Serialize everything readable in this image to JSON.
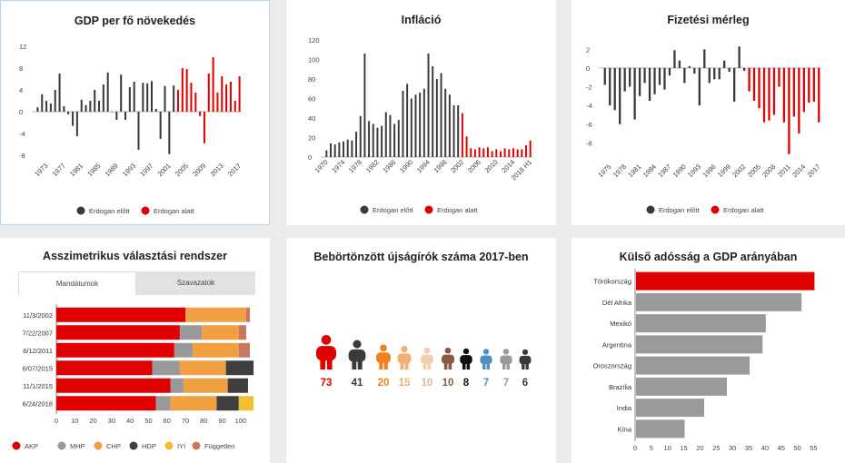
{
  "chart_data": [
    {
      "id": "gdp",
      "type": "bar",
      "title": "GDP per fő növekedés",
      "x": [
        1971,
        1972,
        1973,
        1974,
        1975,
        1976,
        1977,
        1978,
        1979,
        1980,
        1981,
        1982,
        1983,
        1984,
        1985,
        1986,
        1987,
        1988,
        1989,
        1990,
        1991,
        1992,
        1993,
        1994,
        1995,
        1996,
        1997,
        1998,
        1999,
        2000,
        2001,
        2002,
        2003,
        2004,
        2005,
        2006,
        2007,
        2008,
        2009,
        2010,
        2011,
        2012,
        2013,
        2014,
        2015,
        2016,
        2017
      ],
      "values": [
        0.8,
        3.2,
        2.0,
        1.5,
        4.0,
        7.0,
        1.0,
        -0.5,
        -2.6,
        -4.5,
        2.2,
        1.2,
        2.0,
        4.0,
        2.0,
        5.0,
        7.2,
        0.0,
        -1.5,
        6.8,
        -1.5,
        4.5,
        5.5,
        -7.0,
        5.3,
        5.2,
        5.6,
        0.5,
        -5.0,
        4.7,
        -7.8,
        4.8,
        4.0,
        8.0,
        7.8,
        5.3,
        3.5,
        -0.8,
        -5.8,
        7.0,
        10.0,
        3.5,
        6.5,
        5.0,
        5.5,
        2.0,
        6.5
      ],
      "series": [
        {
          "name": "Erdogan előtt",
          "color": "#3a3a3a"
        },
        {
          "name": "Erdogan alatt",
          "color": "#e00000"
        }
      ],
      "split": 2003,
      "ylim": [
        -9,
        13
      ],
      "yticks": [
        12,
        8,
        4,
        0,
        -4,
        -8
      ],
      "xticks": [
        1973,
        1977,
        1981,
        1985,
        1989,
        1993,
        1997,
        2001,
        2005,
        2009,
        2013,
        2017
      ],
      "legend": [
        "Erdogan előtt",
        "Erdogan alatt"
      ]
    },
    {
      "id": "inflation",
      "type": "bar",
      "title": "Infláció",
      "x": [
        "1970",
        "1971",
        "1972",
        "1973",
        "1974",
        "1975",
        "1976",
        "1977",
        "1978",
        "1979",
        "1980",
        "1981",
        "1982",
        "1983",
        "1984",
        "1985",
        "1986",
        "1987",
        "1988",
        "1989",
        "1990",
        "1991",
        "1992",
        "1993",
        "1994",
        "1995",
        "1996",
        "1997",
        "1998",
        "1999",
        "2000",
        "2001",
        "2002",
        "2003",
        "2004",
        "2005",
        "2006",
        "2007",
        "2008",
        "2009",
        "2010",
        "2011",
        "2012",
        "2013",
        "2014",
        "2015",
        "2016",
        "2017",
        "2018 H1"
      ],
      "values": [
        7,
        14,
        13,
        15,
        16,
        18,
        17,
        26,
        42,
        106,
        37,
        34,
        30,
        32,
        46,
        43,
        34,
        38,
        68,
        75,
        60,
        64,
        66,
        70,
        106,
        93,
        80,
        86,
        70,
        64,
        53,
        53,
        45,
        21,
        9,
        8,
        10,
        9,
        10,
        6,
        8,
        6,
        9,
        8,
        9,
        8,
        8,
        12,
        17
      ],
      "series": [
        {
          "name": "Erdogan előtt",
          "color": "#3a3a3a"
        },
        {
          "name": "Erdogan alatt",
          "color": "#e00000"
        }
      ],
      "split": 32,
      "ylim": [
        0,
        120
      ],
      "yticks": [
        120,
        100,
        80,
        60,
        40,
        20,
        0
      ],
      "xticks": [
        "1970",
        "1974",
        "1978",
        "1982",
        "1986",
        "1990",
        "1994",
        "1998",
        "2002",
        "2006",
        "2010",
        "2014",
        "2018 H1"
      ],
      "legend": [
        "Erdogan előtt",
        "Erdogan alatt"
      ]
    },
    {
      "id": "balance",
      "type": "bar",
      "title": "Fizetési mérleg",
      "x": [
        1974,
        1975,
        1976,
        1977,
        1978,
        1979,
        1980,
        1981,
        1982,
        1983,
        1984,
        1985,
        1986,
        1987,
        1988,
        1989,
        1990,
        1991,
        1992,
        1993,
        1994,
        1995,
        1996,
        1997,
        1998,
        1999,
        2000,
        2001,
        2002,
        2003,
        2004,
        2005,
        2006,
        2007,
        2008,
        2009,
        2010,
        2011,
        2012,
        2013,
        2014,
        2015,
        2016,
        2017
      ],
      "values": [
        -1.8,
        -4.0,
        -4.5,
        -6.0,
        -2.5,
        -2.0,
        -5.5,
        -3.0,
        -1.6,
        -3.5,
        -2.8,
        -1.8,
        -2.3,
        -0.8,
        1.9,
        0.8,
        -1.6,
        0.2,
        -0.6,
        -4.0,
        2.0,
        -1.6,
        -1.2,
        -1.2,
        0.8,
        -0.4,
        -3.6,
        2.3,
        -0.3,
        -2.5,
        -3.5,
        -4.3,
        -5.8,
        -5.6,
        -5.0,
        -2.0,
        -5.8,
        -9.2,
        -5.2,
        -7.0,
        -4.7,
        -3.7,
        -3.6,
        -5.8
      ],
      "series": [
        {
          "name": "Erdogan előtt",
          "color": "#3a3a3a"
        },
        {
          "name": "Erdogan alatt",
          "color": "#e00000"
        }
      ],
      "split": 2003,
      "ylim": [
        -10,
        3
      ],
      "yticks": [
        2,
        0,
        -2,
        -4,
        -6,
        -8
      ],
      "xticks": [
        1975,
        1978,
        1981,
        1984,
        1987,
        1990,
        1993,
        1996,
        1999,
        2002,
        2005,
        2008,
        2011,
        2014,
        2017
      ],
      "legend": [
        "Erdogan előtt",
        "Erdogan alatt"
      ]
    },
    {
      "id": "election",
      "type": "bar",
      "title": "Asszimetrikus választási rendszer",
      "tabs": [
        "Mandátumok",
        "Szavazatok"
      ],
      "categories": [
        "11/3/2002",
        "7/22/2007",
        "6/12/2011",
        "6/07/2015",
        "11/1/2015",
        "6/24/2018"
      ],
      "series": [
        {
          "name": "AKP",
          "color": "#e00000",
          "values": [
            70,
            67,
            64,
            52,
            62,
            54
          ]
        },
        {
          "name": "MHP",
          "color": "#999999",
          "values": [
            0,
            12,
            10,
            15,
            7,
            8
          ]
        },
        {
          "name": "CHP",
          "color": "#f0a040",
          "values": [
            33,
            20,
            25,
            25,
            24,
            25
          ]
        },
        {
          "name": "HDP",
          "color": "#3f3f3f",
          "values": [
            0,
            0,
            0,
            15,
            11,
            12
          ]
        },
        {
          "name": "İYİ",
          "color": "#f0c030",
          "values": [
            0,
            0,
            0,
            0,
            0,
            8
          ]
        },
        {
          "name": "Független",
          "color": "#c87860",
          "values": [
            2,
            4,
            6,
            0,
            0,
            0
          ]
        }
      ],
      "xlim": [
        0,
        105
      ],
      "xticks": [
        0,
        10,
        20,
        30,
        40,
        50,
        60,
        70,
        80,
        90,
        100
      ]
    },
    {
      "id": "journalists",
      "type": "bar",
      "title": "Bebörtönzött újságírók száma 2017-ben",
      "values": [
        73,
        41,
        20,
        15,
        10,
        10,
        8,
        7,
        7,
        6
      ],
      "colors": [
        "#e00000",
        "#3a3a3a",
        "#f08020",
        "#f0b070",
        "#f0d0b0",
        "#8a5a40",
        "#111111",
        "#5090c0",
        "#999999",
        "#3a3a3a"
      ],
      "labels": [
        "73",
        "41",
        "20",
        "15",
        "10",
        "10",
        "8",
        "7",
        "7",
        "6"
      ]
    },
    {
      "id": "debt",
      "type": "bar",
      "title": "Külső adósság a GDP arányában",
      "categories": [
        "Törökország",
        "Dél Afrika",
        "Mexikó",
        "Argentina",
        "Oroszország",
        "Brazília",
        "India",
        "Kína"
      ],
      "values": [
        55,
        51,
        40,
        39,
        35,
        28,
        21,
        15
      ],
      "colors": [
        "#e00000",
        "#9a9a9a",
        "#9a9a9a",
        "#9a9a9a",
        "#9a9a9a",
        "#9a9a9a",
        "#9a9a9a",
        "#9a9a9a"
      ],
      "xlim": [
        0,
        56
      ],
      "xticks": [
        0,
        5,
        10,
        15,
        20,
        25,
        30,
        35,
        40,
        45,
        50,
        55
      ]
    }
  ]
}
